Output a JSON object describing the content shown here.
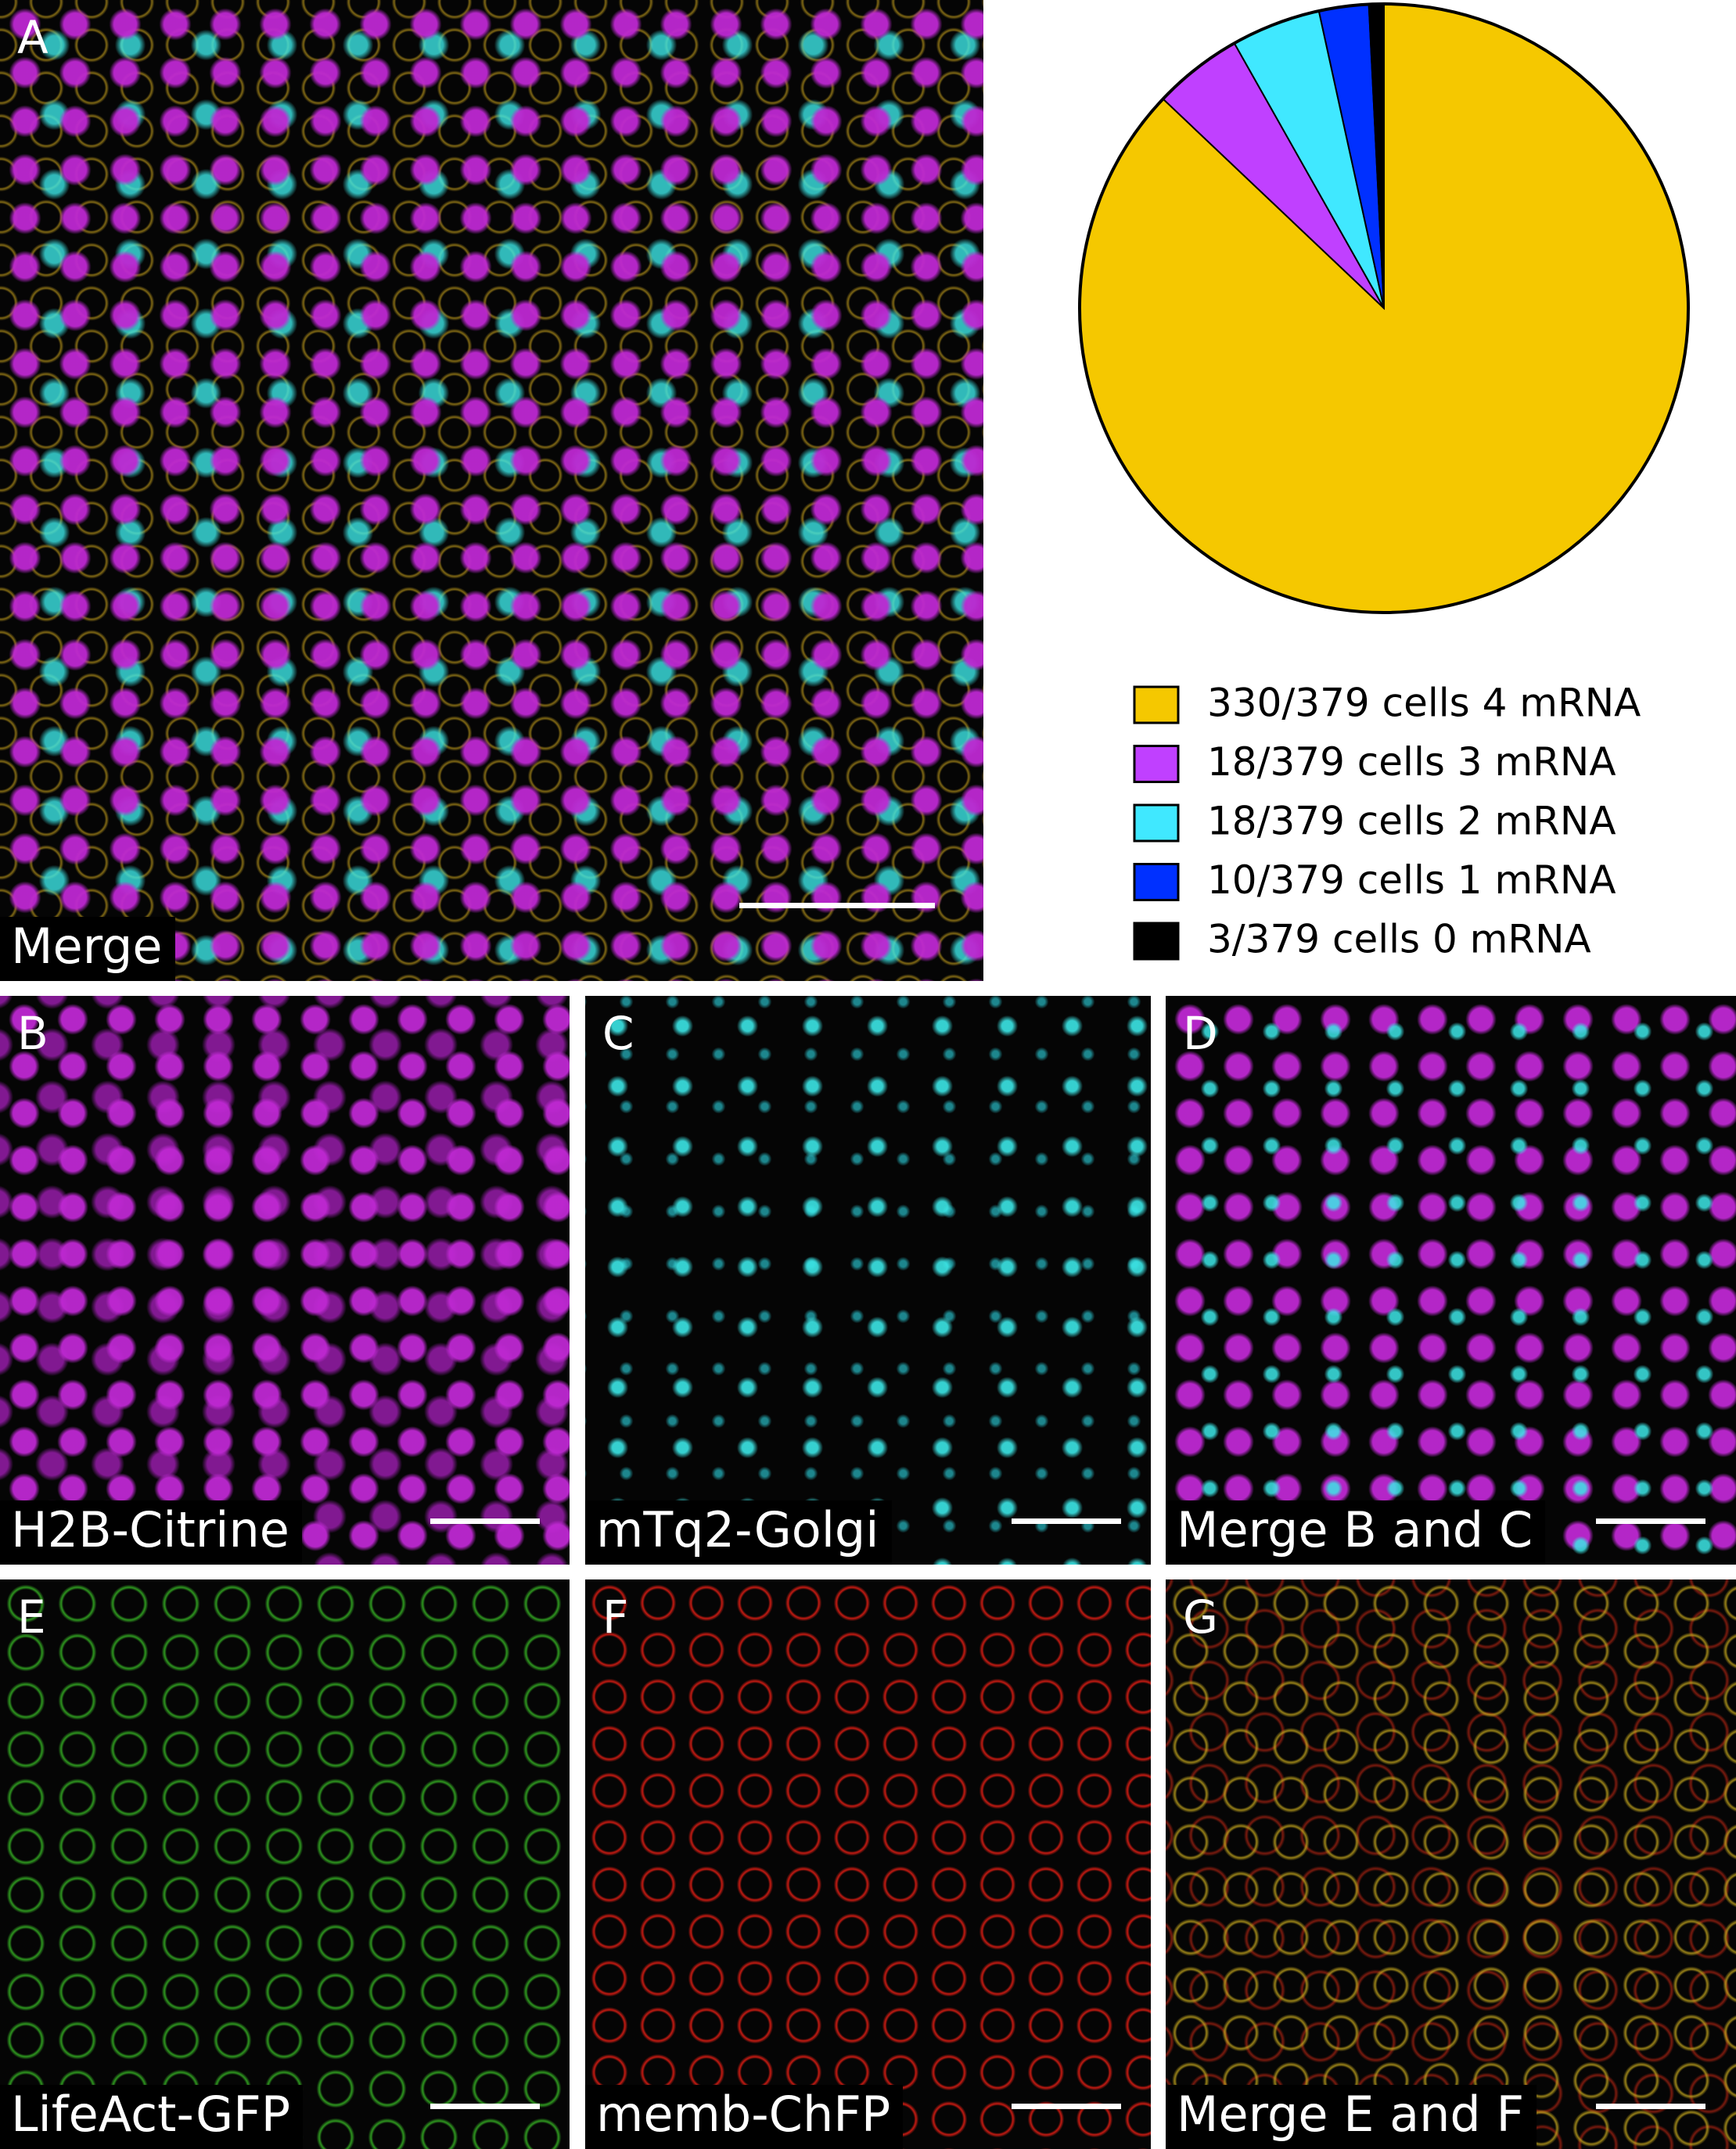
{
  "panels": [
    {
      "label": "A",
      "caption": "Merge"
    },
    {
      "label": "B",
      "caption": "H2B-Citrine"
    },
    {
      "label": "C",
      "caption": "mTq2-Golgi"
    },
    {
      "label": "D",
      "caption": "Merge B and C"
    },
    {
      "label": "E",
      "caption": "LifeAct-GFP"
    },
    {
      "label": "F",
      "caption": "memb-ChFP"
    },
    {
      "label": "G",
      "caption": "Merge E and F"
    }
  ],
  "chart_data": {
    "type": "pie",
    "categories": [
      "330/379 cells 4 mRNA",
      "18/379 cells 3 mRNA",
      "18/379 cells 2 mRNA",
      "10/379 cells 1 mRNA",
      "3/379 cells 0 mRNA"
    ],
    "values": [
      330,
      18,
      18,
      10,
      3
    ],
    "colors": [
      "#f5c800",
      "#c040ff",
      "#40e8ff",
      "#0030ff",
      "#000000"
    ]
  }
}
